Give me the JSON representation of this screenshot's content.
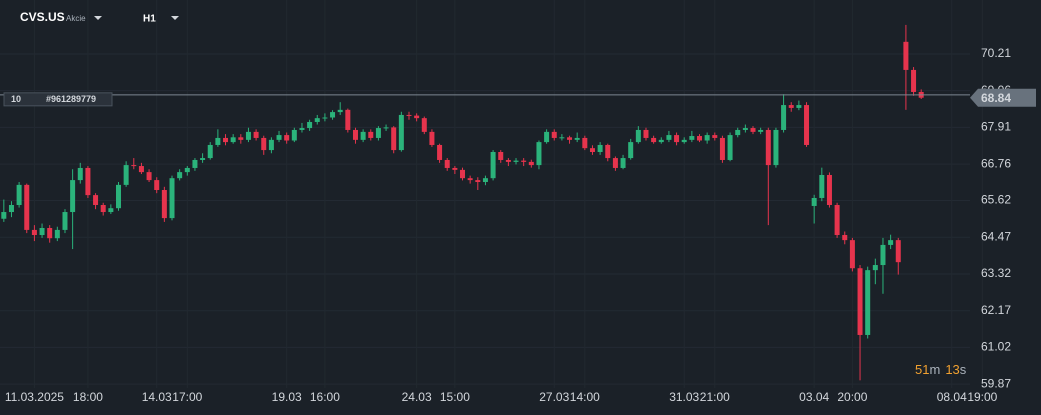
{
  "header": {
    "symbol": "CVS.US",
    "asset_type": "Akcie",
    "timeframe": "H1"
  },
  "countdown": {
    "minutes": 51,
    "minutes_unit": "m",
    "seconds": 13,
    "seconds_unit": "s"
  },
  "chart_data": {
    "type": "candlestick",
    "up_color": "#2bb37b",
    "down_color": "#e6344d",
    "grid": true,
    "ylim": [
      59.53,
      71.9
    ],
    "yticks": [
      70.21,
      69.06,
      67.91,
      66.76,
      65.62,
      64.47,
      63.32,
      62.17,
      61.02,
      59.87
    ],
    "xlim": [
      -0.5,
      129
    ],
    "xticks": [
      {
        "value": 4,
        "label": "11.03.2025"
      },
      {
        "value": 11,
        "label": "18:00"
      },
      {
        "value": 20,
        "label": "14.03"
      },
      {
        "value": 24,
        "label": "17:00"
      },
      {
        "value": 37,
        "label": "19.03"
      },
      {
        "value": 42,
        "label": "16:00"
      },
      {
        "value": 54,
        "label": "24.03"
      },
      {
        "value": 59,
        "label": "15:00"
      },
      {
        "value": 72,
        "label": "27.03"
      },
      {
        "value": 76,
        "label": "14:00"
      },
      {
        "value": 89,
        "label": "31.03"
      },
      {
        "value": 93,
        "label": "21:00"
      },
      {
        "value": 106,
        "label": "03.04"
      },
      {
        "value": 111,
        "label": "20:00"
      },
      {
        "value": 124,
        "label": "08.04"
      },
      {
        "value": 128,
        "label": "19:00"
      }
    ],
    "last_price": 68.84,
    "order": {
      "volume": 10,
      "id": "#961289779",
      "price": 68.93
    },
    "open": [
      65.05,
      65.26,
      65.48,
      66.11,
      64.7,
      64.54,
      64.76,
      64.44,
      64.7,
      65.26,
      66.26,
      66.64,
      65.79,
      65.48,
      65.26,
      65.38,
      66.11,
      66.73,
      66.7,
      66.51,
      66.26,
      65.95,
      65.07,
      66.32,
      66.51,
      66.64,
      66.89,
      66.95,
      67.36,
      67.58,
      67.45,
      67.6,
      67.52,
      67.77,
      67.58,
      67.2,
      67.52,
      67.67,
      67.5,
      67.83,
      67.89,
      68.08,
      68.2,
      68.22,
      68.39,
      68.46,
      67.83,
      67.52,
      67.77,
      67.58,
      67.89,
      67.91,
      67.2,
      68.3,
      68.28,
      68.2,
      67.77,
      67.36,
      66.89,
      66.64,
      66.58,
      66.32,
      66.26,
      66.2,
      66.32,
      67.14,
      66.89,
      66.83,
      66.87,
      66.83,
      66.73,
      67.45,
      67.77,
      67.58,
      67.6,
      67.52,
      67.58,
      67.26,
      67.14,
      67.36,
      66.95,
      66.64,
      66.95,
      67.45,
      67.83,
      67.58,
      67.45,
      67.52,
      67.67,
      67.45,
      67.52,
      67.64,
      67.5,
      67.67,
      67.58,
      66.89,
      67.67,
      67.83,
      67.89,
      67.77,
      67.83,
      66.73,
      67.83,
      68.61,
      68.52,
      68.61,
      65.45,
      65.7,
      66.42,
      65.48,
      64.54,
      64.38,
      63.5,
      61.41,
      63.44,
      63.6,
      64.23,
      64.38,
      70.59,
      69.71,
      69.02
    ],
    "high": [
      65.65,
      65.6,
      66.2,
      66.15,
      64.85,
      64.9,
      64.85,
      64.8,
      65.35,
      66.6,
      66.8,
      66.7,
      65.85,
      65.55,
      65.5,
      66.2,
      66.85,
      66.95,
      66.8,
      66.6,
      66.35,
      66.05,
      66.4,
      66.6,
      66.7,
      66.95,
      67.1,
      67.45,
      67.85,
      67.7,
      67.7,
      67.7,
      67.9,
      67.85,
      67.65,
      67.6,
      67.8,
      67.75,
      67.9,
      68.05,
      68.15,
      68.3,
      68.35,
      68.45,
      68.7,
      68.5,
      67.9,
      67.85,
      67.85,
      67.95,
      68.0,
      67.95,
      68.4,
      68.4,
      68.35,
      68.25,
      67.85,
      67.4,
      66.95,
      66.7,
      66.65,
      66.4,
      66.35,
      66.4,
      67.2,
      67.2,
      66.95,
      66.95,
      66.95,
      66.9,
      67.5,
      67.85,
      67.85,
      67.7,
      67.65,
      67.75,
      67.65,
      67.35,
      67.45,
      67.4,
      67.0,
      67.05,
      67.55,
      67.95,
      67.9,
      67.65,
      67.6,
      67.8,
      67.75,
      67.6,
      67.8,
      67.7,
      67.75,
      67.75,
      67.65,
      67.75,
      67.9,
      68.0,
      67.95,
      67.9,
      67.9,
      67.9,
      68.95,
      68.7,
      68.75,
      68.7,
      65.8,
      66.65,
      66.5,
      65.55,
      64.65,
      64.45,
      63.6,
      63.55,
      63.8,
      64.45,
      64.55,
      64.45,
      71.12,
      69.8,
      69.1
    ],
    "low": [
      64.95,
      65.1,
      65.4,
      64.6,
      64.35,
      64.45,
      64.3,
      64.35,
      64.6,
      64.1,
      66.15,
      65.7,
      65.35,
      65.15,
      65.2,
      65.3,
      66.05,
      66.6,
      66.45,
      66.2,
      65.85,
      64.95,
      65.0,
      66.25,
      66.4,
      66.55,
      66.8,
      66.9,
      67.3,
      67.35,
      67.4,
      67.4,
      67.45,
      67.5,
      67.05,
      67.1,
      67.45,
      67.4,
      67.45,
      67.75,
      67.8,
      68.0,
      68.1,
      68.15,
      68.3,
      67.75,
      67.4,
      67.45,
      67.5,
      67.5,
      67.8,
      67.1,
      67.15,
      68.15,
      68.1,
      67.7,
      67.3,
      66.8,
      66.55,
      66.45,
      66.25,
      66.15,
      65.95,
      66.1,
      66.25,
      66.8,
      66.7,
      66.75,
      66.7,
      66.65,
      66.6,
      67.4,
      67.5,
      67.5,
      67.4,
      67.45,
      67.2,
      67.05,
      67.05,
      66.85,
      66.55,
      66.6,
      66.9,
      67.4,
      67.5,
      67.4,
      67.4,
      67.45,
      67.35,
      67.4,
      67.45,
      67.45,
      67.4,
      67.5,
      66.8,
      66.85,
      67.6,
      67.75,
      67.7,
      67.7,
      64.85,
      66.65,
      67.75,
      68.4,
      68.45,
      67.3,
      64.9,
      65.6,
      65.4,
      64.45,
      64.25,
      63.4,
      59.99,
      61.3,
      63.0,
      62.7,
      64.1,
      63.3,
      68.46,
      68.9,
      68.8
    ],
    "close": [
      65.26,
      65.48,
      66.11,
      64.7,
      64.54,
      64.76,
      64.44,
      64.7,
      65.26,
      66.26,
      66.64,
      65.79,
      65.48,
      65.26,
      65.38,
      66.11,
      66.73,
      66.7,
      66.51,
      66.26,
      65.95,
      65.07,
      66.32,
      66.51,
      66.64,
      66.89,
      66.95,
      67.36,
      67.58,
      67.45,
      67.6,
      67.52,
      67.77,
      67.58,
      67.2,
      67.52,
      67.67,
      67.5,
      67.83,
      67.89,
      68.08,
      68.2,
      68.22,
      68.39,
      68.46,
      67.83,
      67.52,
      67.77,
      67.58,
      67.89,
      67.91,
      67.2,
      68.3,
      68.28,
      68.2,
      67.77,
      67.36,
      66.89,
      66.64,
      66.58,
      66.32,
      66.26,
      66.2,
      66.32,
      67.14,
      66.89,
      66.83,
      66.87,
      66.83,
      66.73,
      67.45,
      67.77,
      67.58,
      67.6,
      67.52,
      67.58,
      67.26,
      67.14,
      67.36,
      66.95,
      66.64,
      66.95,
      67.45,
      67.83,
      67.58,
      67.45,
      67.52,
      67.67,
      67.45,
      67.52,
      67.64,
      67.5,
      67.67,
      67.58,
      66.89,
      67.67,
      67.83,
      67.89,
      67.77,
      67.83,
      66.73,
      67.83,
      68.61,
      68.52,
      68.61,
      67.36,
      65.7,
      66.42,
      65.48,
      64.54,
      64.38,
      63.5,
      61.41,
      63.44,
      63.6,
      64.23,
      64.38,
      63.69,
      69.71,
      69.02,
      68.84
    ]
  }
}
